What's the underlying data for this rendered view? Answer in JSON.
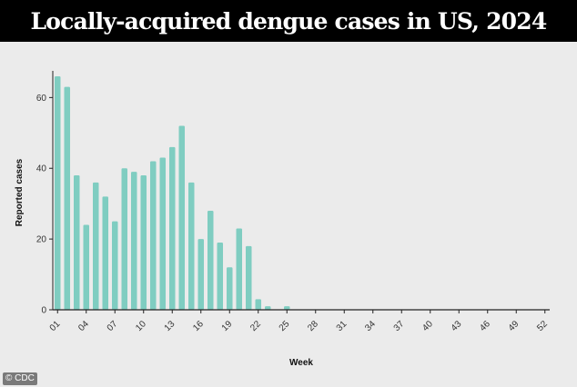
{
  "title": "Locally-acquired dengue cases in US, 2024",
  "credit": "© CDC",
  "colors": {
    "bar": "#7fcdc1",
    "axis": "#222222",
    "title_bg": "#000000",
    "panel": "#ebebeb"
  },
  "chart_data": {
    "type": "bar",
    "title": "",
    "xlabel": "Week",
    "ylabel": "Reported cases",
    "ylim": [
      0,
      66
    ],
    "yticks": [
      0,
      20,
      40,
      60
    ],
    "xtick_labels": [
      "01",
      "04",
      "07",
      "10",
      "13",
      "16",
      "19",
      "22",
      "25",
      "28",
      "31",
      "34",
      "37",
      "40",
      "43",
      "46",
      "49",
      "52"
    ],
    "grid": false,
    "categories": [
      "01",
      "02",
      "03",
      "04",
      "05",
      "06",
      "07",
      "08",
      "09",
      "10",
      "11",
      "12",
      "13",
      "14",
      "15",
      "16",
      "17",
      "18",
      "19",
      "20",
      "21",
      "22",
      "23",
      "24",
      "25",
      "26",
      "27",
      "28",
      "29",
      "30",
      "31",
      "32",
      "33",
      "34",
      "35",
      "36",
      "37",
      "38",
      "39",
      "40",
      "41",
      "42",
      "43",
      "44",
      "45",
      "46",
      "47",
      "48",
      "49",
      "50",
      "51",
      "52"
    ],
    "values": [
      66,
      63,
      38,
      24,
      36,
      32,
      25,
      40,
      39,
      38,
      42,
      43,
      46,
      52,
      36,
      20,
      28,
      19,
      12,
      23,
      18,
      3,
      1,
      0,
      1,
      0,
      0,
      0,
      0,
      0,
      0,
      0,
      0,
      0,
      0,
      0,
      0,
      0,
      0,
      0,
      0,
      0,
      0,
      0,
      0,
      0,
      0,
      0,
      0,
      0,
      0,
      0
    ]
  }
}
